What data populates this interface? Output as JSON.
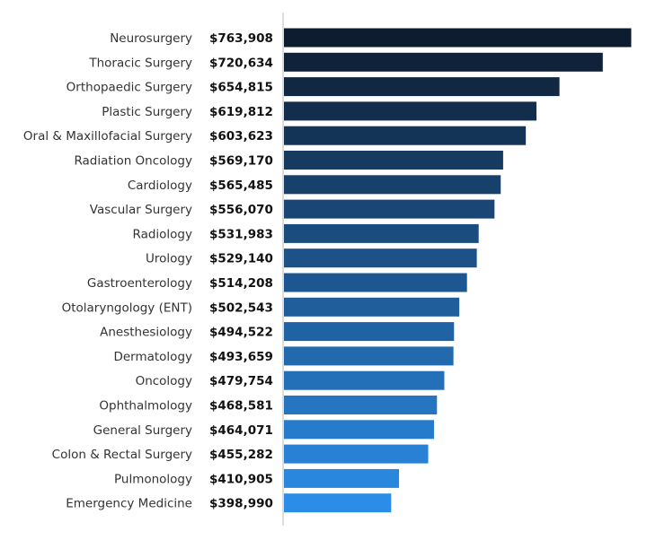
{
  "chart_data": {
    "type": "bar",
    "orientation": "horizontal",
    "title": "",
    "xlabel": "",
    "ylabel": "",
    "categories": [
      "Neurosurgery",
      "Thoracic Surgery",
      "Orthopaedic Surgery",
      "Plastic Surgery",
      "Oral & Maxillofacial Surgery",
      "Radiation Oncology",
      "Cardiology",
      "Vascular Surgery",
      "Radiology",
      "Urology",
      "Gastroenterology",
      "Otolaryngology (ENT)",
      "Anesthesiology",
      "Dermatology",
      "Oncology",
      "Ophthalmology",
      "General Surgery",
      "Colon & Rectal Surgery",
      "Pulmonology",
      "Emergency Medicine"
    ],
    "values": [
      763908,
      720634,
      654815,
      619812,
      603623,
      569170,
      565485,
      556070,
      531983,
      529140,
      514208,
      502543,
      494522,
      493659,
      479754,
      468581,
      464071,
      455282,
      410905,
      398990
    ],
    "data_labels": [
      "$763,908",
      "$720,634",
      "$654,815",
      "$619,812",
      "$603,623",
      "$569,170",
      "$565,485",
      "$556,070",
      "$531,983",
      "$529,140",
      "$514,208",
      "$502,543",
      "$494,522",
      "$493,659",
      "$479,754",
      "$468,581",
      "$464,071",
      "$455,282",
      "$410,905",
      "$398,990"
    ],
    "xlim": [
      236000,
      766000
    ],
    "grid": false,
    "legend": "none",
    "colors": {
      "top": "#0e1c30",
      "bottom": "#2b8de8"
    }
  }
}
